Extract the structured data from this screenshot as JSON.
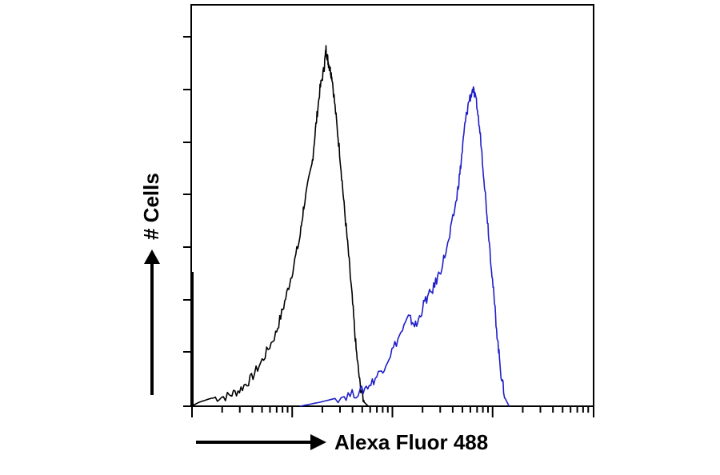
{
  "chart_data": {
    "type": "line",
    "title": "",
    "xlabel": "Alexa Fluor 488",
    "ylabel": "# Cells",
    "x_scale": "log",
    "y_tick_labels": false,
    "x_tick_labels": false,
    "grid": false,
    "legend": "none",
    "series": [
      {
        "color": "#000000",
        "points": [
          [
            0.0,
            0.0
          ],
          [
            0.02,
            0.01
          ],
          [
            0.05,
            0.02
          ],
          [
            0.09,
            0.025
          ],
          [
            0.12,
            0.04
          ],
          [
            0.15,
            0.07
          ],
          [
            0.18,
            0.12
          ],
          [
            0.21,
            0.18
          ],
          [
            0.23,
            0.25
          ],
          [
            0.25,
            0.33
          ],
          [
            0.27,
            0.42
          ],
          [
            0.28,
            0.5
          ],
          [
            0.3,
            0.6
          ],
          [
            0.31,
            0.7
          ],
          [
            0.32,
            0.79
          ],
          [
            0.33,
            0.84
          ],
          [
            0.335,
            0.89
          ],
          [
            0.34,
            0.86
          ],
          [
            0.345,
            0.84
          ],
          [
            0.35,
            0.82
          ],
          [
            0.36,
            0.72
          ],
          [
            0.37,
            0.62
          ],
          [
            0.38,
            0.5
          ],
          [
            0.39,
            0.39
          ],
          [
            0.4,
            0.27
          ],
          [
            0.41,
            0.14
          ],
          [
            0.42,
            0.05
          ],
          [
            0.43,
            0.01
          ],
          [
            0.44,
            0.0
          ]
        ]
      },
      {
        "color": "#1f1fc8",
        "points": [
          [
            0.27,
            0.0
          ],
          [
            0.32,
            0.01
          ],
          [
            0.38,
            0.025
          ],
          [
            0.42,
            0.035
          ],
          [
            0.45,
            0.06
          ],
          [
            0.48,
            0.1
          ],
          [
            0.51,
            0.16
          ],
          [
            0.54,
            0.22
          ],
          [
            0.56,
            0.2
          ],
          [
            0.58,
            0.26
          ],
          [
            0.6,
            0.29
          ],
          [
            0.62,
            0.34
          ],
          [
            0.64,
            0.41
          ],
          [
            0.66,
            0.52
          ],
          [
            0.67,
            0.6
          ],
          [
            0.68,
            0.7
          ],
          [
            0.69,
            0.76
          ],
          [
            0.7,
            0.79
          ],
          [
            0.71,
            0.75
          ],
          [
            0.72,
            0.66
          ],
          [
            0.73,
            0.54
          ],
          [
            0.74,
            0.42
          ],
          [
            0.75,
            0.3
          ],
          [
            0.76,
            0.18
          ],
          [
            0.77,
            0.08
          ],
          [
            0.78,
            0.02
          ],
          [
            0.79,
            0.0
          ]
        ]
      }
    ]
  }
}
